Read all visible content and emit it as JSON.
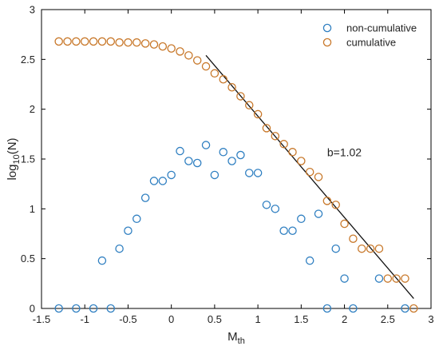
{
  "chart_data": {
    "type": "scatter",
    "xlabel": {
      "main": "M",
      "sub": "th"
    },
    "ylabel": {
      "pre": "log",
      "sub": "10",
      "post": "(N)"
    },
    "xlim": [
      -1.5,
      3
    ],
    "ylim": [
      0,
      3
    ],
    "xticks": [
      -1.5,
      -1,
      -0.5,
      0,
      0.5,
      1,
      1.5,
      2,
      2.5,
      3
    ],
    "xtick_labels": [
      "-1.5",
      "-1",
      "-0.5",
      "0",
      "0.5",
      "1",
      "1.5",
      "2",
      "2.5",
      "3"
    ],
    "yticks": [
      0,
      0.5,
      1,
      1.5,
      2,
      2.5,
      3
    ],
    "ytick_labels": [
      "0",
      "0.5",
      "1",
      "1.5",
      "2",
      "2.5",
      "3"
    ],
    "grid": false,
    "legend_position": "top-right",
    "series": [
      {
        "name": "non-cumulative",
        "color": "#2f7fc1",
        "x": [
          -1.3,
          -1.1,
          -0.9,
          -0.8,
          -0.7,
          -0.6,
          -0.5,
          -0.4,
          -0.3,
          -0.2,
          -0.1,
          0.0,
          0.1,
          0.2,
          0.3,
          0.4,
          0.5,
          0.6,
          0.7,
          0.8,
          0.9,
          1.0,
          1.1,
          1.2,
          1.3,
          1.4,
          1.5,
          1.6,
          1.7,
          1.8,
          1.9,
          2.0,
          2.1,
          2.4,
          2.7
        ],
        "y": [
          0,
          0,
          0,
          0.48,
          0,
          0.6,
          0.78,
          0.9,
          1.11,
          1.28,
          1.28,
          1.34,
          1.58,
          1.48,
          1.46,
          1.64,
          1.34,
          1.57,
          1.48,
          1.54,
          1.36,
          1.36,
          1.04,
          1.0,
          0.78,
          0.78,
          0.9,
          0.48,
          0.95,
          0,
          0.6,
          0.3,
          0,
          0.3,
          0
        ]
      },
      {
        "name": "cumulative",
        "color": "#c8782a",
        "x": [
          -1.3,
          -1.2,
          -1.1,
          -1.0,
          -0.9,
          -0.8,
          -0.7,
          -0.6,
          -0.5,
          -0.4,
          -0.3,
          -0.2,
          -0.1,
          0.0,
          0.1,
          0.2,
          0.3,
          0.4,
          0.5,
          0.6,
          0.7,
          0.8,
          0.9,
          1.0,
          1.1,
          1.2,
          1.3,
          1.4,
          1.5,
          1.6,
          1.7,
          1.8,
          1.9,
          2.0,
          2.1,
          2.2,
          2.3,
          2.4,
          2.5,
          2.6,
          2.7,
          2.8
        ],
        "y": [
          2.68,
          2.68,
          2.68,
          2.68,
          2.68,
          2.68,
          2.68,
          2.67,
          2.67,
          2.67,
          2.66,
          2.65,
          2.63,
          2.61,
          2.58,
          2.54,
          2.49,
          2.43,
          2.36,
          2.3,
          2.22,
          2.13,
          2.04,
          1.95,
          1.81,
          1.73,
          1.65,
          1.57,
          1.48,
          1.37,
          1.32,
          1.08,
          1.04,
          0.85,
          0.7,
          0.6,
          0.6,
          0.6,
          0.3,
          0.3,
          0.3,
          0
        ]
      }
    ],
    "fit_line": {
      "x": [
        0.4,
        2.8
      ],
      "y": [
        2.54,
        0.1
      ],
      "color": "#111111"
    },
    "annotation": {
      "text": "b=1.02",
      "x": 1.8,
      "y": 1.57
    }
  }
}
